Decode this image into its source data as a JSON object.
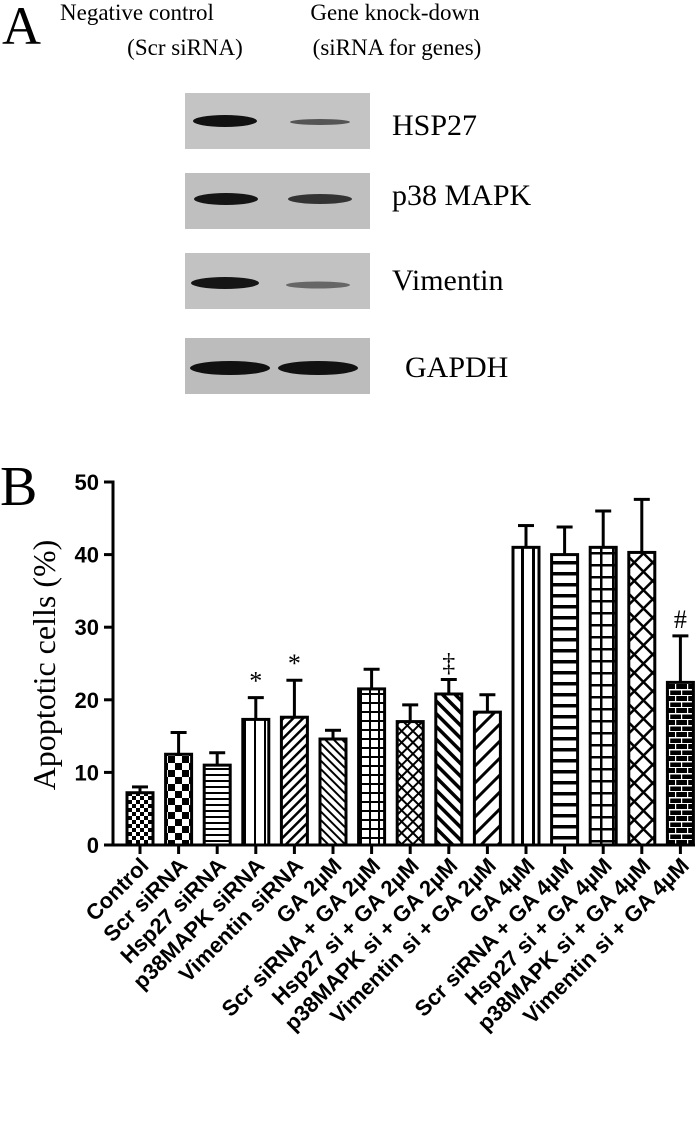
{
  "panel_a": {
    "label": "A",
    "columns": [
      {
        "title": "Negative control",
        "subtitle": "(Scr siRNA)"
      },
      {
        "title": "Gene knock-down",
        "subtitle": "(siRNA for genes)"
      }
    ],
    "blots": [
      "HSP27",
      "p38 MAPK",
      "Vimentin",
      "GAPDH"
    ]
  },
  "chart_data": {
    "type": "bar",
    "panel_label": "B",
    "y_label": "Apoptotic cells (%)",
    "categories": [
      "Control",
      "Scr siRNA",
      "Hsp27 siRNA",
      "p38MAPK siRNA",
      "Vimentin siRNA",
      "GA 2µM",
      "Scr siRNA + GA 2µM",
      "Hsp27 si + GA 2µM",
      "p38MAPK si + GA 2µM",
      "Vimentin si + GA 2µM",
      "GA 4µM",
      "Scr siRNA + GA 4µM",
      "Hsp27 si + GA 4µM",
      "p38MAPK si + GA 4µM",
      "Vimentin si + GA 4µM"
    ],
    "values": [
      7.2,
      12.5,
      11.0,
      17.3,
      17.6,
      14.6,
      21.5,
      17.0,
      20.8,
      18.3,
      41.0,
      40.0,
      41.0,
      40.3,
      22.4
    ],
    "errors": [
      0.8,
      3.0,
      1.7,
      3.0,
      5.1,
      1.2,
      2.7,
      2.3,
      2.0,
      2.4,
      3.0,
      3.8,
      5.0,
      7.3,
      6.4
    ],
    "significance": [
      null,
      null,
      null,
      "*",
      "*",
      null,
      null,
      null,
      "‡",
      null,
      null,
      null,
      null,
      null,
      "#"
    ],
    "patterns": [
      "checker",
      "checker-large",
      "hlines",
      "vlines",
      "diag-up",
      "diag-down",
      "grid",
      "cross",
      "diag-down-bold",
      "diag-up-wide",
      "vlines-bold",
      "hlines-bold",
      "grid-bold",
      "cross-big",
      "brick"
    ],
    "color": "#000000",
    "ylim": [
      0,
      50
    ],
    "yticks": [
      0,
      10,
      20,
      30,
      40,
      50
    ],
    "grid": false
  }
}
